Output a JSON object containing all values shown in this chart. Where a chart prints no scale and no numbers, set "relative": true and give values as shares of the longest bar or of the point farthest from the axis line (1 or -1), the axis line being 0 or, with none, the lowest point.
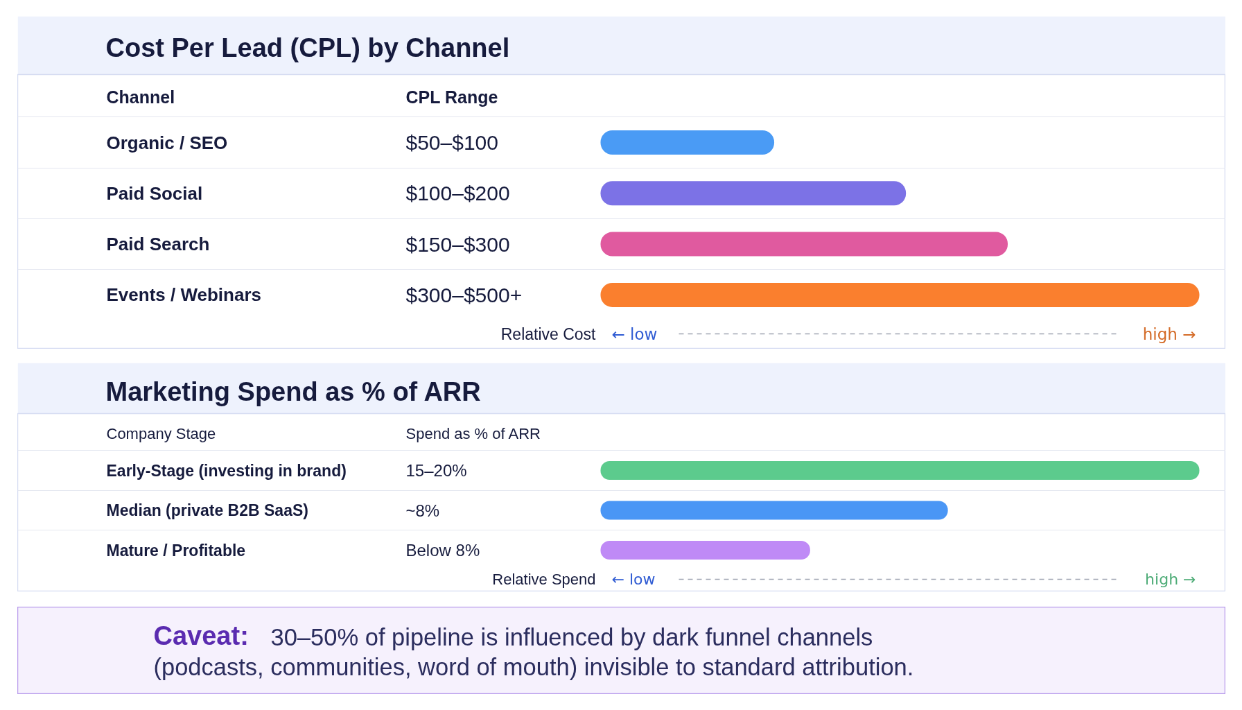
{
  "chart_data": [
    {
      "type": "bar",
      "orientation": "horizontal",
      "relative": true,
      "title": "Cost Per Lead (CPL) by Channel",
      "ylabel": "Channel",
      "xlabel": "Relative Cost",
      "categories": [
        "Organic / SEO",
        "Paid Social",
        "Paid Search",
        "Events / Webinars"
      ],
      "values": [
        0.29,
        0.51,
        0.68,
        1
      ],
      "colors": [
        "#4a9bf5",
        "#7c72e6",
        "#e05a9f",
        "#fa7f2e"
      ],
      "annotations": [
        "CPL Range",
        "← low",
        "high →",
        "$50–$100",
        "$100–$200",
        "$150–$300",
        "$300–$500+"
      ],
      "grid": "y"
    },
    {
      "type": "bar",
      "orientation": "horizontal",
      "relative": true,
      "title": "Marketing Spend as % of ARR",
      "ylabel": "Company Stage",
      "xlabel": "Relative Spend",
      "categories": [
        "Early-Stage (investing in brand)",
        "Median (private B2B SaaS)",
        "Mature / Profitable"
      ],
      "values": [
        1,
        0.58,
        0.35
      ],
      "colors": [
        "#5ccb8d",
        "#4a96f5",
        "#bf8af6"
      ],
      "annotations": [
        "Spend as % of ARR",
        "← low",
        "high →",
        "15–20%",
        "~8%",
        "Below 8%"
      ],
      "grid": "y"
    },
    {
      "type": "other",
      "title": "Caveat:",
      "annotations": [
        "30–50% of pipeline is influenced by dark funnel channels",
        "(podcasts, communities, word of mouth) invisible to standard attribution."
      ]
    }
  ]
}
